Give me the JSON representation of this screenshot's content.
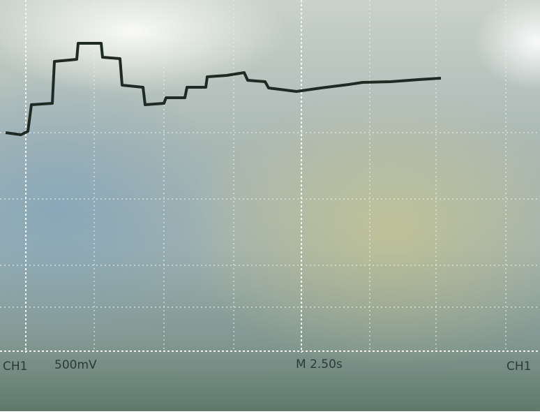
{
  "screen": {
    "channel_label": "CH1",
    "volts_per_div": "500mV",
    "timebase": "M 2.50s",
    "right_channel_label": "CH1"
  }
}
